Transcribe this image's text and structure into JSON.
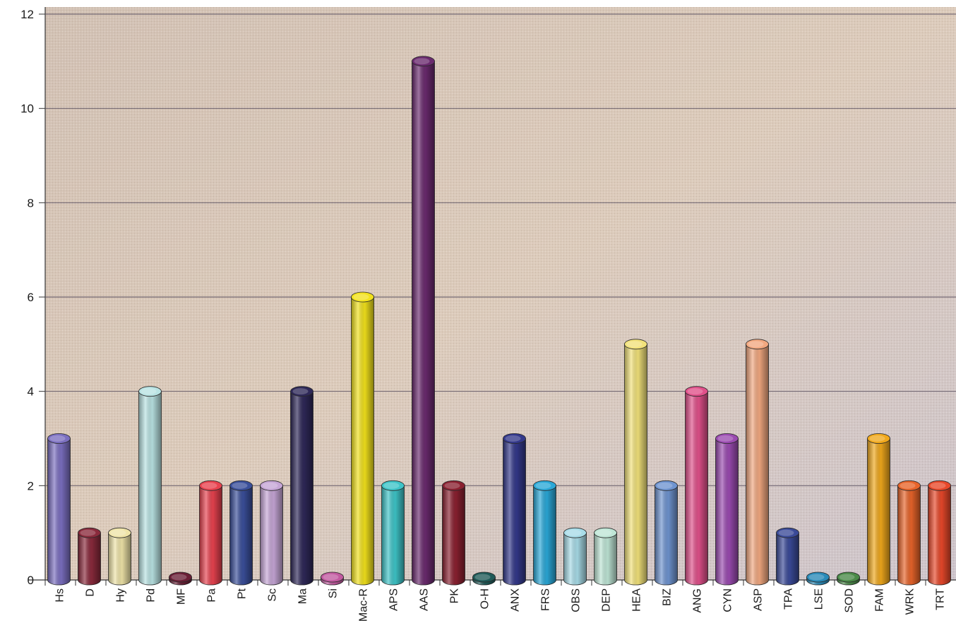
{
  "chart_data": {
    "type": "bar",
    "style": "3d-cylinder",
    "title": "",
    "xlabel": "",
    "ylabel": "",
    "ylim": [
      0,
      12
    ],
    "yticks": [
      0,
      2,
      4,
      6,
      8,
      10,
      12
    ],
    "grid": true,
    "legend": "none",
    "categories": [
      "Hs",
      "D",
      "Hy",
      "Pd",
      "MF",
      "Pa",
      "Pt",
      "Sc",
      "Ma",
      "Si",
      "Mac-R",
      "APS",
      "AAS",
      "PK",
      "O-H",
      "ANX",
      "FRS",
      "OBS",
      "DEP",
      "HEA",
      "BIZ",
      "ANG",
      "CYN",
      "ASP",
      "TPA",
      "LSE",
      "SOD",
      "FAM",
      "WRK",
      "TRT"
    ],
    "values": [
      3,
      1,
      1,
      4,
      0,
      2,
      2,
      2,
      4,
      0,
      6,
      2,
      11,
      2,
      0,
      3,
      2,
      1,
      1,
      5,
      2,
      4,
      3,
      5,
      1,
      0,
      0,
      3,
      2,
      2
    ],
    "colors": [
      "#7b6fc0",
      "#8a2a3c",
      "#efe4a8",
      "#b9e3e3",
      "#6a1f36",
      "#e8424f",
      "#3a4f9a",
      "#c6a6d6",
      "#2e2858",
      "#c25aa0",
      "#f2e21c",
      "#3ec4c8",
      "#6a2a6e",
      "#8a2030",
      "#1f5a58",
      "#33388a",
      "#2aa8d8",
      "#a8dce8",
      "#bfe6d6",
      "#f2e27a",
      "#6f94d0",
      "#e0508a",
      "#9a4ab0",
      "#f2a880",
      "#3a4a98",
      "#2a8ab8",
      "#4a8a48",
      "#f0a81c",
      "#e8642a",
      "#e8482a"
    ]
  }
}
